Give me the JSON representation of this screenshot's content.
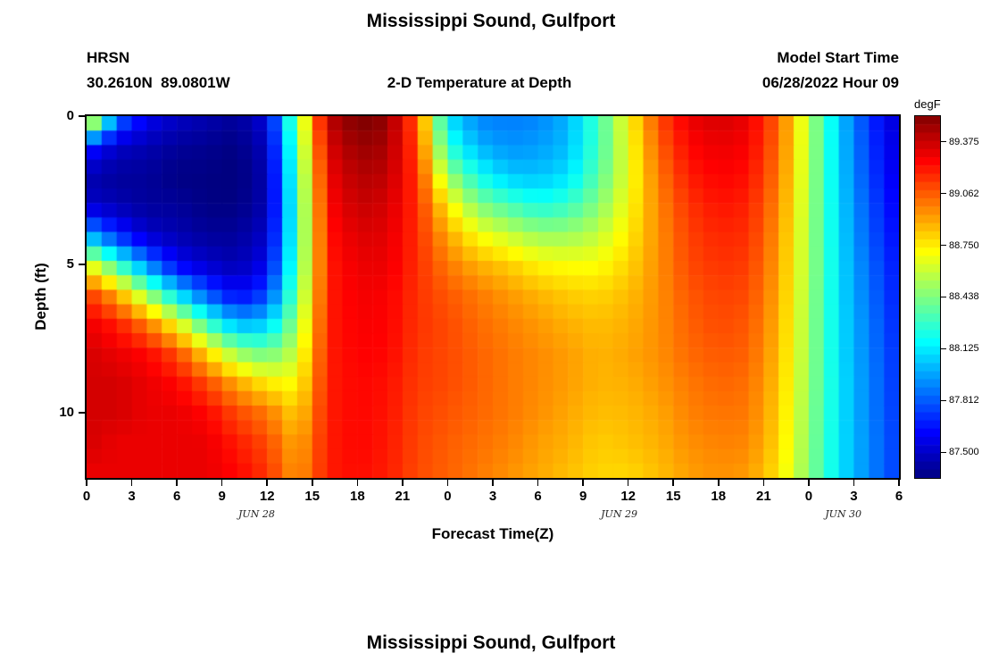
{
  "header": {
    "station": "HRSN",
    "coordinates": "30.2610N  89.0801W",
    "plot_title": "2-D Temperature at Depth",
    "model_start_label": "Model Start Time",
    "model_start_value": "06/28/2022 Hour 09"
  },
  "next_chart": {
    "title": "Mississippi Sound, Gulfport"
  },
  "chart_data": {
    "type": "heatmap",
    "title": "Mississippi Sound, Gulfport",
    "subtitle": "2-D Temperature at Depth",
    "xlabel": "Forecast Time(Z)",
    "ylabel": "Depth (ft)",
    "colorbar_label": "degF",
    "grid": false,
    "x_range_hours": [
      0,
      54
    ],
    "depth_max": 12.2,
    "vmin": 87.344,
    "vmax": 89.531,
    "x_ticks": [
      "0",
      "3",
      "6",
      "9",
      "12",
      "15",
      "18",
      "21",
      "0",
      "3",
      "6",
      "9",
      "12",
      "15",
      "18",
      "21",
      "0",
      "3",
      "6"
    ],
    "x_tick_hours": [
      0,
      3,
      6,
      9,
      12,
      15,
      18,
      21,
      24,
      27,
      30,
      33,
      36,
      39,
      42,
      45,
      48,
      51,
      54
    ],
    "y_ticks": [
      "0",
      "5",
      "10"
    ],
    "y_tick_depths": [
      0,
      5,
      10
    ],
    "date_labels": [
      {
        "label": "JUN 28",
        "hour": 11.3
      },
      {
        "label": "JUN 29",
        "hour": 35.4
      },
      {
        "label": "JUN 30",
        "hour": 50.3
      }
    ],
    "colorbar_ticks": [
      "89.375",
      "89.062",
      "88.750",
      "88.438",
      "88.125",
      "87.812",
      "87.500"
    ],
    "colormap": [
      {
        "pos": 0.0,
        "color": "#000080"
      },
      {
        "pos": 0.125,
        "color": "#0000ff"
      },
      {
        "pos": 0.375,
        "color": "#00ffff"
      },
      {
        "pos": 0.625,
        "color": "#ffff00"
      },
      {
        "pos": 0.875,
        "color": "#ff0000"
      },
      {
        "pos": 1.0,
        "color": "#800000"
      }
    ],
    "hours": [
      0,
      2,
      4,
      6,
      8,
      10,
      12,
      14,
      16,
      18,
      20,
      22,
      24,
      26,
      28,
      30,
      32,
      34,
      36,
      38,
      40,
      42,
      44,
      46,
      48,
      50,
      52,
      54
    ],
    "depths": [
      0,
      1,
      2,
      3,
      4,
      5,
      6,
      7,
      8,
      9,
      10,
      11,
      12
    ],
    "values": [
      [
        89.0,
        87.9,
        87.6,
        87.5,
        87.45,
        87.4,
        87.55,
        88.45,
        89.4,
        89.55,
        89.5,
        89.05,
        88.1,
        87.9,
        87.88,
        87.9,
        88.0,
        88.3,
        88.7,
        89.1,
        89.3,
        89.35,
        89.3,
        89.05,
        88.55,
        88.05,
        87.72,
        87.5
      ],
      [
        87.7,
        87.5,
        87.45,
        87.4,
        87.38,
        87.35,
        87.48,
        88.38,
        89.33,
        89.48,
        89.45,
        89.1,
        88.25,
        88.0,
        87.93,
        87.95,
        88.02,
        88.3,
        88.67,
        89.05,
        89.25,
        89.3,
        89.27,
        89.03,
        88.55,
        88.06,
        87.74,
        87.52
      ],
      [
        87.45,
        87.4,
        87.4,
        87.35,
        87.35,
        87.33,
        87.45,
        88.33,
        89.28,
        89.42,
        89.4,
        89.14,
        88.5,
        88.2,
        88.05,
        88.03,
        88.1,
        88.35,
        88.66,
        89.0,
        89.2,
        89.26,
        89.23,
        89.0,
        88.54,
        88.07,
        87.76,
        87.55
      ],
      [
        87.5,
        87.45,
        87.4,
        87.4,
        87.35,
        87.35,
        87.45,
        88.3,
        89.25,
        89.38,
        89.35,
        89.16,
        88.75,
        88.45,
        88.32,
        88.22,
        88.28,
        88.45,
        88.7,
        88.97,
        89.15,
        89.22,
        89.19,
        88.97,
        88.53,
        88.08,
        87.79,
        87.58
      ],
      [
        88.0,
        87.7,
        87.5,
        87.45,
        87.4,
        87.4,
        87.5,
        88.3,
        89.22,
        89.33,
        89.32,
        89.16,
        88.9,
        88.7,
        88.6,
        88.5,
        88.5,
        88.58,
        88.75,
        88.95,
        89.12,
        89.18,
        89.16,
        88.94,
        88.52,
        88.09,
        87.81,
        87.61
      ],
      [
        88.7,
        88.3,
        87.9,
        87.6,
        87.5,
        87.45,
        87.58,
        88.33,
        89.2,
        89.3,
        89.3,
        89.16,
        89.0,
        88.88,
        88.82,
        88.73,
        88.7,
        88.7,
        88.8,
        88.95,
        89.1,
        89.15,
        89.13,
        88.92,
        88.52,
        88.1,
        87.84,
        87.64
      ],
      [
        89.15,
        88.9,
        88.5,
        88.1,
        87.8,
        87.6,
        87.75,
        88.4,
        89.2,
        89.28,
        89.27,
        89.15,
        89.07,
        89.0,
        88.93,
        88.87,
        88.82,
        88.8,
        88.85,
        88.95,
        89.07,
        89.12,
        89.1,
        88.9,
        88.51,
        88.1,
        87.86,
        87.66
      ],
      [
        89.3,
        89.2,
        89.0,
        88.7,
        88.3,
        88.0,
        88.05,
        88.5,
        89.2,
        89.27,
        89.26,
        89.15,
        89.1,
        89.03,
        88.98,
        88.93,
        88.88,
        88.85,
        88.88,
        88.95,
        89.05,
        89.1,
        89.07,
        88.88,
        88.5,
        88.11,
        87.88,
        87.68
      ],
      [
        89.35,
        89.3,
        89.25,
        89.1,
        88.8,
        88.5,
        88.4,
        88.6,
        89.2,
        89.26,
        89.25,
        89.14,
        89.1,
        89.05,
        89.0,
        88.96,
        88.92,
        88.87,
        88.9,
        88.95,
        89.03,
        89.07,
        89.05,
        88.86,
        88.5,
        88.11,
        87.89,
        87.7
      ],
      [
        89.35,
        89.35,
        89.3,
        89.25,
        89.1,
        88.9,
        88.75,
        88.7,
        89.2,
        89.25,
        89.23,
        89.13,
        89.1,
        89.05,
        89.0,
        88.96,
        88.92,
        88.87,
        88.88,
        88.93,
        89.0,
        89.04,
        89.02,
        88.84,
        88.49,
        88.12,
        87.9,
        87.71
      ],
      [
        89.35,
        89.35,
        89.3,
        89.3,
        89.25,
        89.1,
        89.0,
        88.8,
        89.2,
        89.25,
        89.22,
        89.12,
        89.08,
        89.04,
        89.0,
        88.95,
        88.9,
        88.85,
        88.86,
        88.9,
        88.98,
        89.01,
        89.0,
        88.82,
        88.48,
        88.12,
        87.9,
        87.72
      ],
      [
        89.35,
        89.3,
        89.3,
        89.3,
        89.3,
        89.2,
        89.1,
        88.88,
        89.2,
        89.25,
        89.21,
        89.11,
        89.06,
        89.02,
        88.98,
        88.92,
        88.88,
        88.82,
        88.84,
        88.88,
        88.95,
        88.98,
        88.97,
        88.8,
        88.47,
        88.12,
        87.91,
        87.73
      ],
      [
        89.3,
        89.3,
        89.3,
        89.3,
        89.3,
        89.25,
        89.15,
        88.92,
        89.2,
        89.24,
        89.2,
        89.1,
        89.05,
        89.0,
        88.95,
        88.9,
        88.85,
        88.8,
        88.8,
        88.85,
        88.92,
        88.95,
        88.93,
        88.77,
        88.46,
        88.12,
        87.91,
        87.73
      ]
    ]
  }
}
